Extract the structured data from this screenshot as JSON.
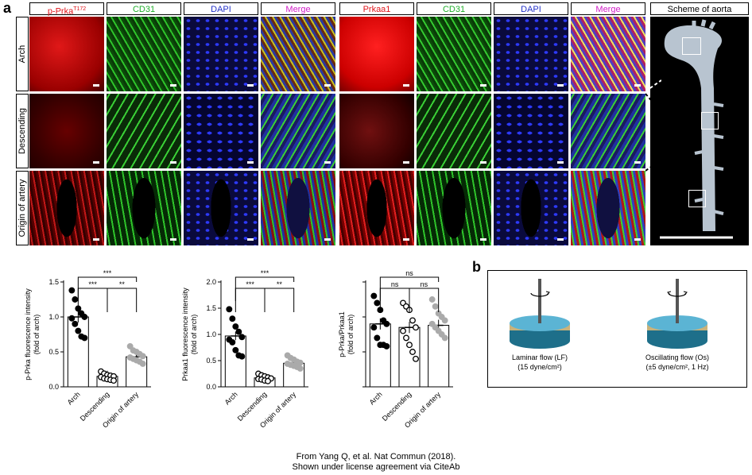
{
  "panel_a": {
    "letter": "a",
    "headers": [
      "p-Prka",
      "T172",
      "CD31",
      "DAPI",
      "Merge",
      "Prkaa1",
      "CD31",
      "DAPI",
      "Merge",
      "Scheme of aorta"
    ],
    "rows": [
      "Arch",
      "Descending",
      "Origin of artery"
    ]
  },
  "panel_b": {
    "letter": "b",
    "left_label_1": "Laminar flow (LF)",
    "left_label_2": "(15 dyne/cm²)",
    "right_label_1": "Oscillating flow (Os)",
    "right_label_2": "(±5 dyne/cm², 1 Hz)"
  },
  "caption": {
    "line1": "From Yang Q, et al. Nat Commun (2018).",
    "line2": "Shown under license agreement via CiteAb"
  },
  "colors": {
    "red": "#e0151b",
    "green": "#1fae2a",
    "blue": "#2432c8",
    "magenta": "#d21ec8",
    "bar": "#ffffff"
  },
  "chart_data": [
    {
      "type": "bar",
      "categories": [
        "Arch",
        "Descending",
        "Origin of artery"
      ],
      "values": [
        1.0,
        0.15,
        0.43
      ],
      "ylabel": "p-Prka fluorescence intensity (fold of arch)",
      "ylim": [
        0,
        1.5
      ],
      "yticks": [
        "0.0",
        "0.5",
        "1.0",
        "1.5"
      ],
      "significance": [
        {
          "from": "Arch",
          "to": "Descending",
          "label": "***"
        },
        {
          "from": "Descending",
          "to": "Origin of artery",
          "label": "**"
        },
        {
          "from": "Arch",
          "to": "Origin of artery",
          "label": "***"
        }
      ],
      "points": [
        [
          1.38,
          1.25,
          1.12,
          1.05,
          1.0,
          0.98,
          0.9,
          0.8,
          0.72,
          0.7
        ],
        [
          0.22,
          0.19,
          0.17,
          0.16,
          0.15,
          0.14,
          0.12,
          0.11,
          0.1,
          0.09
        ],
        [
          0.58,
          0.52,
          0.5,
          0.47,
          0.44,
          0.42,
          0.4,
          0.38,
          0.36,
          0.33
        ]
      ]
    },
    {
      "type": "bar",
      "categories": [
        "Arch",
        "Descending",
        "Origin of artery"
      ],
      "values": [
        0.97,
        0.17,
        0.45
      ],
      "ylabel": "Prkaa1 fluorescence intensity (fold of arch)",
      "ylim": [
        0,
        2.0
      ],
      "yticks": [
        "0.0",
        "0.5",
        "1.0",
        "1.5",
        "2.0"
      ],
      "significance": [
        {
          "from": "Arch",
          "to": "Descending",
          "label": "***"
        },
        {
          "from": "Descending",
          "to": "Origin of artery",
          "label": "**"
        },
        {
          "from": "Arch",
          "to": "Origin of artery",
          "label": "***"
        }
      ],
      "points": [
        [
          1.48,
          1.3,
          1.15,
          1.05,
          0.95,
          0.9,
          0.85,
          0.7,
          0.6,
          0.58
        ],
        [
          0.25,
          0.22,
          0.2,
          0.18,
          0.16,
          0.15,
          0.14,
          0.12,
          0.11
        ],
        [
          0.6,
          0.55,
          0.52,
          0.48,
          0.46,
          0.44,
          0.42,
          0.4,
          0.38,
          0.35
        ]
      ]
    },
    {
      "type": "bar",
      "categories": [
        "Arch",
        "Descending",
        "Origin of artery"
      ],
      "values": [
        0.9,
        0.85,
        0.88
      ],
      "ylabel": "p-Prka/Prkaa1 (fold of arch)",
      "ylim": [
        0,
        1.5
      ],
      "yticks": [],
      "significance": [
        {
          "from": "Arch",
          "to": "Descending",
          "label": "ns"
        },
        {
          "from": "Descending",
          "to": "Origin of artery",
          "label": "ns"
        },
        {
          "from": "Arch",
          "to": "Origin of artery",
          "label": "ns"
        }
      ],
      "points": [
        [
          1.3,
          1.2,
          1.1,
          0.95,
          0.9,
          0.85,
          0.7,
          0.6,
          0.6,
          0.58
        ],
        [
          1.2,
          1.15,
          1.1,
          0.95,
          0.85,
          0.8,
          0.7,
          0.6,
          0.5,
          0.4
        ],
        [
          1.25,
          1.15,
          1.05,
          1.0,
          0.95,
          0.9,
          0.85,
          0.8,
          0.75,
          0.7
        ]
      ]
    }
  ]
}
